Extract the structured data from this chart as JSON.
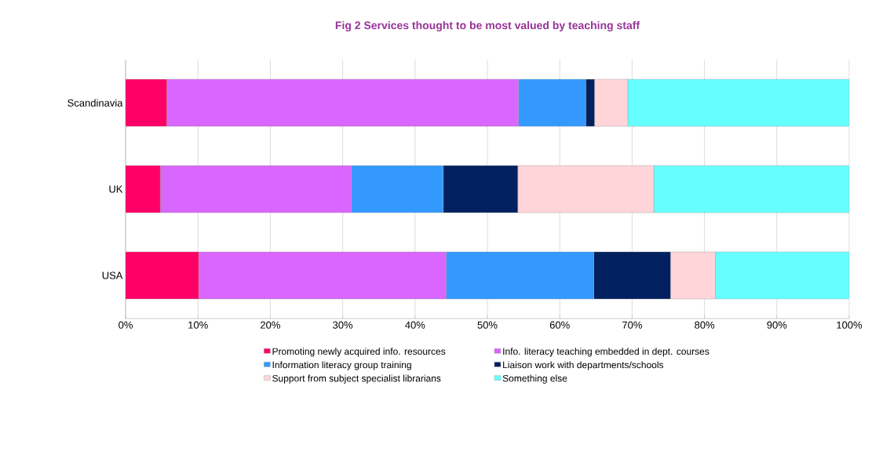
{
  "chart_data": {
    "type": "bar",
    "orientation": "horizontal",
    "stacked": true,
    "title": "Fig 2 Services thought to be most valued by teaching staff",
    "categories": [
      "Scandinavia",
      "UK",
      "USA"
    ],
    "series": [
      {
        "name": "Promoting newly acquired info. resources",
        "color": "#ff0066",
        "values": [
          5.7,
          4.8,
          10.1
        ]
      },
      {
        "name": "Info. literacy teaching embedded in dept. courses",
        "color": "#d966ff",
        "values": [
          48.6,
          26.4,
          34.2
        ]
      },
      {
        "name": "Information literacy group training",
        "color": "#3399ff",
        "values": [
          9.3,
          12.7,
          20.4
        ]
      },
      {
        "name": "Liaison work with departments/schools",
        "color": "#002060",
        "values": [
          1.2,
          10.3,
          10.6
        ]
      },
      {
        "name": "Support from subject specialist librarians",
        "color": "#ffd5d9",
        "values": [
          4.6,
          18.8,
          6.2
        ]
      },
      {
        "name": "Something else",
        "color": "#66ffff",
        "values": [
          30.6,
          27.0,
          18.5
        ]
      }
    ],
    "xlim": [
      0,
      100
    ],
    "xticks": [
      {
        "value": 0,
        "label": "0%"
      },
      {
        "value": 10,
        "label": "10%"
      },
      {
        "value": 20,
        "label": "20%"
      },
      {
        "value": 30,
        "label": "30%"
      },
      {
        "value": 40,
        "label": "40%"
      },
      {
        "value": 50,
        "label": "50%"
      },
      {
        "value": 60,
        "label": "60%"
      },
      {
        "value": 70,
        "label": "70%"
      },
      {
        "value": 80,
        "label": "80%"
      },
      {
        "value": 90,
        "label": "90%"
      },
      {
        "value": 100,
        "label": "100%"
      }
    ],
    "grid": "x",
    "legend": "bottom"
  }
}
